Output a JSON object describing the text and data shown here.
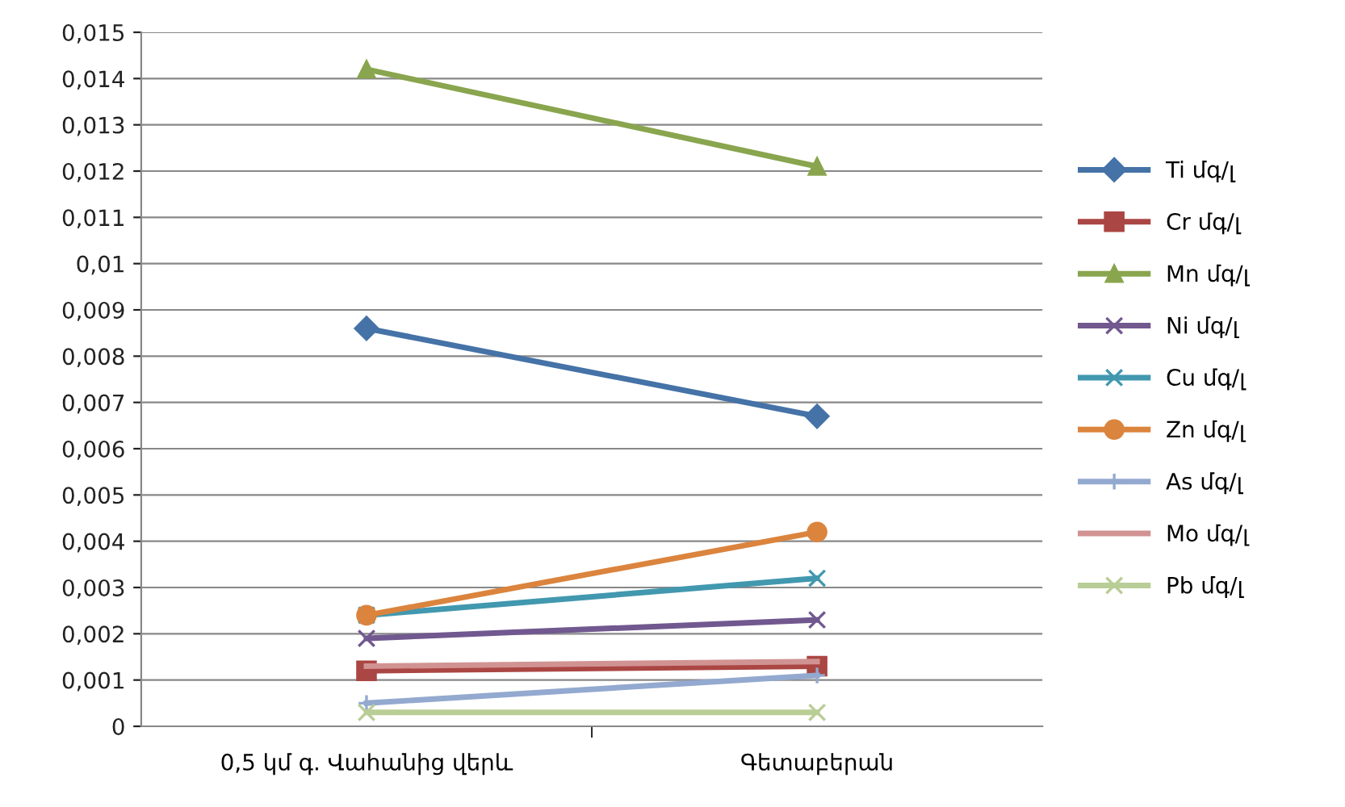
{
  "chart_data": {
    "type": "line",
    "categories": [
      "0,5 կմ գ. Վահանից վերև",
      "Գետաբերան"
    ],
    "series": [
      {
        "name": "Ti մգ/լ",
        "color": "#4572a7",
        "marker": "diamond",
        "values": [
          0.0086,
          0.0067
        ]
      },
      {
        "name": "Cr մգ/լ",
        "color": "#aa4643",
        "marker": "square",
        "values": [
          0.0012,
          0.0013
        ]
      },
      {
        "name": "Mn մգ/լ",
        "color": "#89a54e",
        "marker": "triangle",
        "values": [
          0.0142,
          0.0121
        ]
      },
      {
        "name": "Ni մգ/լ",
        "color": "#71588f",
        "marker": "cross",
        "values": [
          0.0019,
          0.0023
        ]
      },
      {
        "name": "Cu մգ/լ",
        "color": "#4198af",
        "marker": "cross",
        "values": [
          0.0024,
          0.0032
        ]
      },
      {
        "name": "Zn մգ/լ",
        "color": "#db843d",
        "marker": "circle",
        "values": [
          0.0024,
          0.0042
        ]
      },
      {
        "name": "As մգ/լ",
        "color": "#93a9cf",
        "marker": "plus",
        "values": [
          0.0005,
          0.0011
        ]
      },
      {
        "name": "Mo մգ/լ",
        "color": "#d19392",
        "marker": "none",
        "values": [
          0.0013,
          0.0014
        ]
      },
      {
        "name": "Pb մգ/լ",
        "color": "#b9cd96",
        "marker": "cross",
        "values": [
          0.0003,
          0.0003
        ]
      }
    ],
    "ylim": [
      0,
      0.015
    ],
    "yticks": [
      0,
      {
        "value": 0.001,
        "label": "0,001"
      },
      {
        "value": 0.002,
        "label": "0,002"
      },
      {
        "value": 0.003,
        "label": "0,003"
      },
      {
        "value": 0.004,
        "label": "0,004"
      },
      {
        "value": 0.005,
        "label": "0,005"
      },
      {
        "value": 0.006,
        "label": "0,006"
      },
      {
        "value": 0.007,
        "label": "0,007"
      },
      {
        "value": 0.008,
        "label": "0,008"
      },
      {
        "value": 0.009,
        "label": "0,009"
      },
      {
        "value": 0.01,
        "label": "0,01"
      },
      {
        "value": 0.011,
        "label": "0,011"
      },
      {
        "value": 0.012,
        "label": "0,012"
      },
      {
        "value": 0.013,
        "label": "0,013"
      },
      {
        "value": 0.014,
        "label": "0,014"
      },
      {
        "value": 0.015,
        "label": "0,015"
      }
    ],
    "grid": "y",
    "legend": "right",
    "line_style": "solid"
  }
}
